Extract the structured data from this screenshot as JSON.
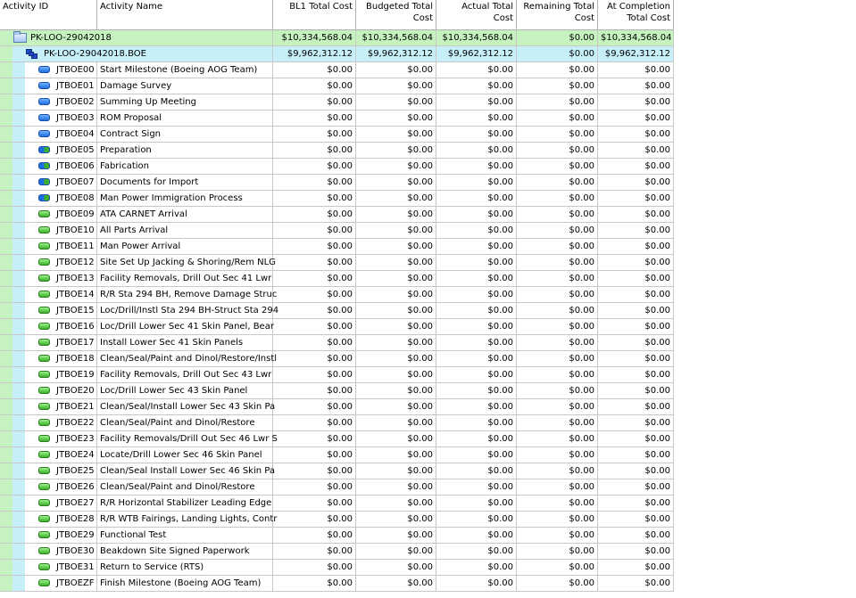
{
  "columns": {
    "activity_id": "Activity ID",
    "activity_name": "Activity Name",
    "bl1_total_cost": "BL1 Total Cost",
    "budgeted_total_cost": "Budgeted Total Cost",
    "actual_total_cost": "Actual Total Cost",
    "remaining_total_cost": "Remaining Total Cost",
    "at_completion_total_cost": "At Completion Total Cost"
  },
  "project": {
    "name": "PK-LOO-29042018",
    "bl1": "$10,334,568.04",
    "budgeted": "$10,334,568.04",
    "actual": "$10,334,568.04",
    "remaining": "$0.00",
    "at_completion": "$10,334,568.04",
    "colors": {
      "band": "#c6f2c0"
    }
  },
  "wbs": {
    "name": "PK-LOO-29042018.BOE",
    "bl1": "$9,962,312.12",
    "budgeted": "$9,962,312.12",
    "actual": "$9,962,312.12",
    "remaining": "$0.00",
    "at_completion": "$9,962,312.12",
    "colors": {
      "band": "#c7eff8"
    }
  },
  "activities": [
    {
      "id": "JTBOE00",
      "name": "Start Milestone (Boeing AOG Team)",
      "icon": "blue-bar-icon",
      "bl1": "$0.00",
      "budgeted": "$0.00",
      "actual": "$0.00",
      "remaining": "$0.00",
      "at_completion": "$0.00"
    },
    {
      "id": "JTBOE01",
      "name": "Damage Survey",
      "icon": "blue-bar-icon",
      "bl1": "$0.00",
      "budgeted": "$0.00",
      "actual": "$0.00",
      "remaining": "$0.00",
      "at_completion": "$0.00"
    },
    {
      "id": "JTBOE02",
      "name": "Summing Up Meeting",
      "icon": "blue-bar-icon",
      "bl1": "$0.00",
      "budgeted": "$0.00",
      "actual": "$0.00",
      "remaining": "$0.00",
      "at_completion": "$0.00"
    },
    {
      "id": "JTBOE03",
      "name": "ROM Proposal",
      "icon": "blue-bar-icon",
      "bl1": "$0.00",
      "budgeted": "$0.00",
      "actual": "$0.00",
      "remaining": "$0.00",
      "at_completion": "$0.00"
    },
    {
      "id": "JTBOE04",
      "name": "Contract Sign",
      "icon": "blue-bar-icon",
      "bl1": "$0.00",
      "budgeted": "$0.00",
      "actual": "$0.00",
      "remaining": "$0.00",
      "at_completion": "$0.00"
    },
    {
      "id": "JTBOE05",
      "name": "Preparation",
      "icon": "mixed-bar-icon",
      "bl1": "$0.00",
      "budgeted": "$0.00",
      "actual": "$0.00",
      "remaining": "$0.00",
      "at_completion": "$0.00"
    },
    {
      "id": "JTBOE06",
      "name": "Fabrication",
      "icon": "mixed-bar-icon",
      "bl1": "$0.00",
      "budgeted": "$0.00",
      "actual": "$0.00",
      "remaining": "$0.00",
      "at_completion": "$0.00"
    },
    {
      "id": "JTBOE07",
      "name": "Documents for Import",
      "icon": "mixed-bar-icon",
      "bl1": "$0.00",
      "budgeted": "$0.00",
      "actual": "$0.00",
      "remaining": "$0.00",
      "at_completion": "$0.00"
    },
    {
      "id": "JTBOE08",
      "name": "Man Power Immigration Process",
      "icon": "mixed-bar-icon",
      "bl1": "$0.00",
      "budgeted": "$0.00",
      "actual": "$0.00",
      "remaining": "$0.00",
      "at_completion": "$0.00"
    },
    {
      "id": "JTBOE09",
      "name": "ATA CARNET Arrival",
      "icon": "green-bar-icon",
      "bl1": "$0.00",
      "budgeted": "$0.00",
      "actual": "$0.00",
      "remaining": "$0.00",
      "at_completion": "$0.00"
    },
    {
      "id": "JTBOE10",
      "name": "All Parts Arrival",
      "icon": "green-bar-icon",
      "bl1": "$0.00",
      "budgeted": "$0.00",
      "actual": "$0.00",
      "remaining": "$0.00",
      "at_completion": "$0.00"
    },
    {
      "id": "JTBOE11",
      "name": "Man Power Arrival",
      "icon": "green-bar-icon",
      "bl1": "$0.00",
      "budgeted": "$0.00",
      "actual": "$0.00",
      "remaining": "$0.00",
      "at_completion": "$0.00"
    },
    {
      "id": "JTBOE12",
      "name": "Site Set Up Jacking & Shoring/Rem NLG",
      "icon": "green-bar-icon",
      "bl1": "$0.00",
      "budgeted": "$0.00",
      "actual": "$0.00",
      "remaining": "$0.00",
      "at_completion": "$0.00"
    },
    {
      "id": "JTBOE13",
      "name": "Facility Removals, Drill Out Sec 41 Lwr",
      "icon": "green-bar-icon",
      "bl1": "$0.00",
      "budgeted": "$0.00",
      "actual": "$0.00",
      "remaining": "$0.00",
      "at_completion": "$0.00"
    },
    {
      "id": "JTBOE14",
      "name": "R/R Sta 294 BH, Remove Damage Struc",
      "icon": "green-bar-icon",
      "bl1": "$0.00",
      "budgeted": "$0.00",
      "actual": "$0.00",
      "remaining": "$0.00",
      "at_completion": "$0.00"
    },
    {
      "id": "JTBOE15",
      "name": "Loc/Drill/Instl Sta 294 BH-Struct Sta 294",
      "icon": "green-bar-icon",
      "bl1": "$0.00",
      "budgeted": "$0.00",
      "actual": "$0.00",
      "remaining": "$0.00",
      "at_completion": "$0.00"
    },
    {
      "id": "JTBOE16",
      "name": "Loc/Drill Lower Sec 41 Skin Panel, Bear",
      "icon": "green-bar-icon",
      "bl1": "$0.00",
      "budgeted": "$0.00",
      "actual": "$0.00",
      "remaining": "$0.00",
      "at_completion": "$0.00"
    },
    {
      "id": "JTBOE17",
      "name": "Install Lower Sec 41 Skin Panels",
      "icon": "green-bar-icon",
      "bl1": "$0.00",
      "budgeted": "$0.00",
      "actual": "$0.00",
      "remaining": "$0.00",
      "at_completion": "$0.00"
    },
    {
      "id": "JTBOE18",
      "name": "Clean/Seal/Paint and Dinol/Restore/Instl",
      "icon": "green-bar-icon",
      "bl1": "$0.00",
      "budgeted": "$0.00",
      "actual": "$0.00",
      "remaining": "$0.00",
      "at_completion": "$0.00"
    },
    {
      "id": "JTBOE19",
      "name": "Facility Removals, Drill Out Sec 43 Lwr",
      "icon": "green-bar-icon",
      "bl1": "$0.00",
      "budgeted": "$0.00",
      "actual": "$0.00",
      "remaining": "$0.00",
      "at_completion": "$0.00"
    },
    {
      "id": "JTBOE20",
      "name": "Loc/Drill Lower Sec 43 Skin Panel",
      "icon": "green-bar-icon",
      "bl1": "$0.00",
      "budgeted": "$0.00",
      "actual": "$0.00",
      "remaining": "$0.00",
      "at_completion": "$0.00"
    },
    {
      "id": "JTBOE21",
      "name": "Clean/Seal/Install Lower Sec 43 Skin Pa",
      "icon": "green-bar-icon",
      "bl1": "$0.00",
      "budgeted": "$0.00",
      "actual": "$0.00",
      "remaining": "$0.00",
      "at_completion": "$0.00"
    },
    {
      "id": "JTBOE22",
      "name": "Clean/Seal/Paint and Dinol/Restore",
      "icon": "green-bar-icon",
      "bl1": "$0.00",
      "budgeted": "$0.00",
      "actual": "$0.00",
      "remaining": "$0.00",
      "at_completion": "$0.00"
    },
    {
      "id": "JTBOE23",
      "name": "Facility Removals/Drill Out Sec 46 Lwr S",
      "icon": "green-bar-icon",
      "bl1": "$0.00",
      "budgeted": "$0.00",
      "actual": "$0.00",
      "remaining": "$0.00",
      "at_completion": "$0.00"
    },
    {
      "id": "JTBOE24",
      "name": "Locate/Drill Lower Sec 46 Skin Panel",
      "icon": "green-bar-icon",
      "bl1": "$0.00",
      "budgeted": "$0.00",
      "actual": "$0.00",
      "remaining": "$0.00",
      "at_completion": "$0.00"
    },
    {
      "id": "JTBOE25",
      "name": "Clean/Seal Install Lower Sec 46 Skin Pa",
      "icon": "green-bar-icon",
      "bl1": "$0.00",
      "budgeted": "$0.00",
      "actual": "$0.00",
      "remaining": "$0.00",
      "at_completion": "$0.00"
    },
    {
      "id": "JTBOE26",
      "name": "Clean/Seal/Paint and Dinol/Restore",
      "icon": "green-bar-icon",
      "bl1": "$0.00",
      "budgeted": "$0.00",
      "actual": "$0.00",
      "remaining": "$0.00",
      "at_completion": "$0.00"
    },
    {
      "id": "JTBOE27",
      "name": "R/R Horizontal Stabilizer Leading Edge",
      "icon": "green-bar-icon",
      "bl1": "$0.00",
      "budgeted": "$0.00",
      "actual": "$0.00",
      "remaining": "$0.00",
      "at_completion": "$0.00"
    },
    {
      "id": "JTBOE28",
      "name": "R/R WTB Fairings, Landing Lights, Contr",
      "icon": "green-bar-icon",
      "bl1": "$0.00",
      "budgeted": "$0.00",
      "actual": "$0.00",
      "remaining": "$0.00",
      "at_completion": "$0.00"
    },
    {
      "id": "JTBOE29",
      "name": "Functional Test",
      "icon": "green-bar-icon",
      "bl1": "$0.00",
      "budgeted": "$0.00",
      "actual": "$0.00",
      "remaining": "$0.00",
      "at_completion": "$0.00"
    },
    {
      "id": "JTBOE30",
      "name": "Beakdown Site Signed Paperwork",
      "icon": "green-bar-icon",
      "bl1": "$0.00",
      "budgeted": "$0.00",
      "actual": "$0.00",
      "remaining": "$0.00",
      "at_completion": "$0.00"
    },
    {
      "id": "JTBOE31",
      "name": "Return to Service (RTS)",
      "icon": "green-bar-icon",
      "bl1": "$0.00",
      "budgeted": "$0.00",
      "actual": "$0.00",
      "remaining": "$0.00",
      "at_completion": "$0.00"
    },
    {
      "id": "JTBOEZF",
      "name": "Finish Milestone (Boeing AOG Team)",
      "icon": "green-bar-icon",
      "bl1": "$0.00",
      "budgeted": "$0.00",
      "actual": "$0.00",
      "remaining": "$0.00",
      "at_completion": "$0.00"
    }
  ]
}
